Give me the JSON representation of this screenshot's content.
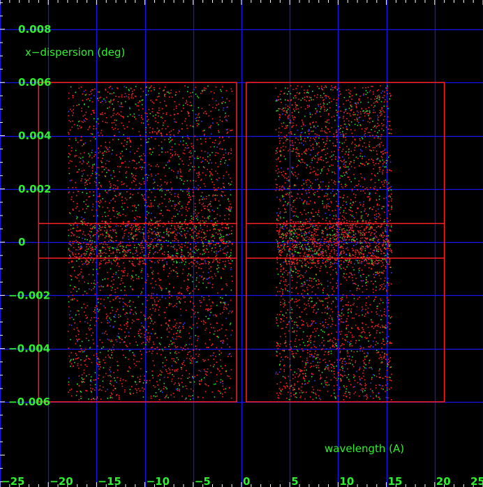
{
  "chart_data": {
    "type": "scatter",
    "title": "",
    "xlabel": "wavelength (A)",
    "ylabel": "x−dispersion (deg)",
    "xlim": [
      -25,
      25
    ],
    "ylim": [
      -0.0092,
      0.0091
    ],
    "x_ticks": [
      -25,
      -20,
      -15,
      -10,
      -5,
      0,
      5,
      10,
      15,
      20,
      25
    ],
    "x_tick_labels": [
      "−25",
      "−20",
      "−15",
      "−10",
      "−5",
      "0",
      "5",
      "10",
      "15",
      "20",
      "25"
    ],
    "y_ticks": [
      -0.006,
      -0.004,
      -0.002,
      0,
      0.002,
      0.004,
      0.006,
      0.008
    ],
    "y_tick_labels": [
      "−0.006",
      "−0.004",
      "−0.002",
      "0",
      "0.002",
      "0.004",
      "0.006",
      "0.008"
    ],
    "grid": true,
    "colors": {
      "background": "#000000",
      "grid": "#1515ee",
      "frame": "#ff2020",
      "text": "#2ff02f",
      "points": [
        "#ff2020",
        "#30e030",
        "#3a3aff"
      ]
    },
    "regions": [
      {
        "x": [
          -21,
          -0.5
        ],
        "y": [
          -0.006,
          0.006
        ],
        "band": [
          -0.0006,
          0.0007
        ]
      },
      {
        "x": [
          0.5,
          21
        ],
        "y": [
          -0.006,
          0.006
        ],
        "band": [
          -0.0006,
          0.0007
        ]
      }
    ],
    "point_clusters": [
      {
        "x": [
          -18,
          -1
        ],
        "y": [
          -0.0059,
          0.0059
        ]
      },
      {
        "x": [
          3.5,
          15.5
        ],
        "y": [
          -0.0059,
          0.0059
        ]
      }
    ]
  }
}
